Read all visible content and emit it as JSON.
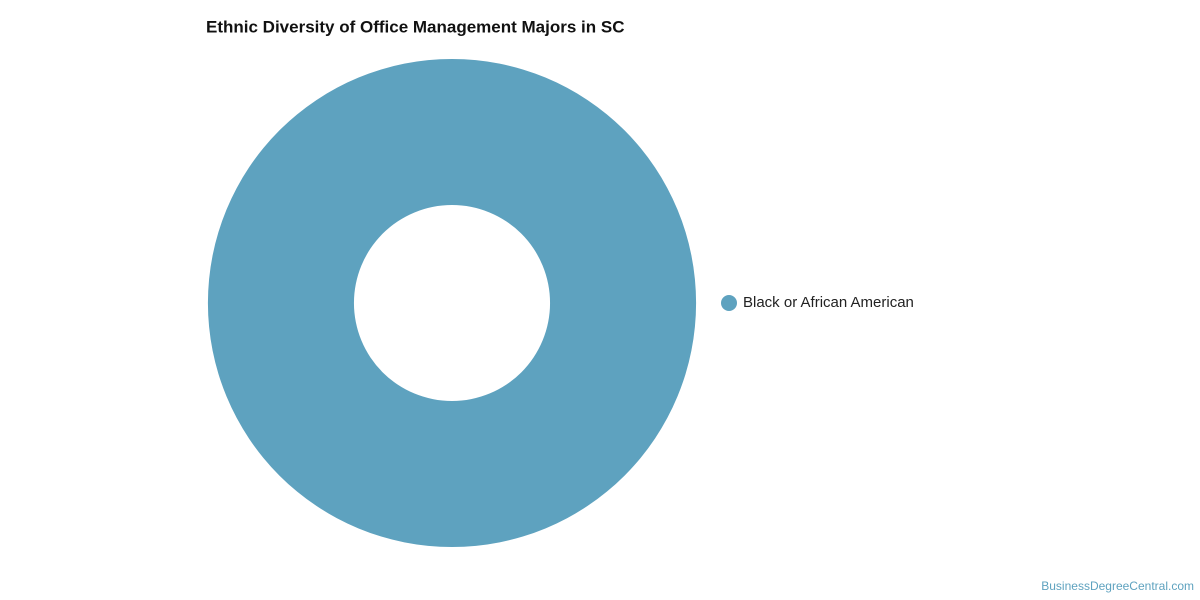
{
  "chart_data": {
    "type": "donut",
    "title": "Ethnic Diversity of Office Management Majors in SC",
    "categories": [
      "Black or African American"
    ],
    "values": [
      100
    ],
    "colors": [
      "#5ea2bf"
    ],
    "legend": "right",
    "watermark": "BusinessDegreeCentral.com"
  }
}
